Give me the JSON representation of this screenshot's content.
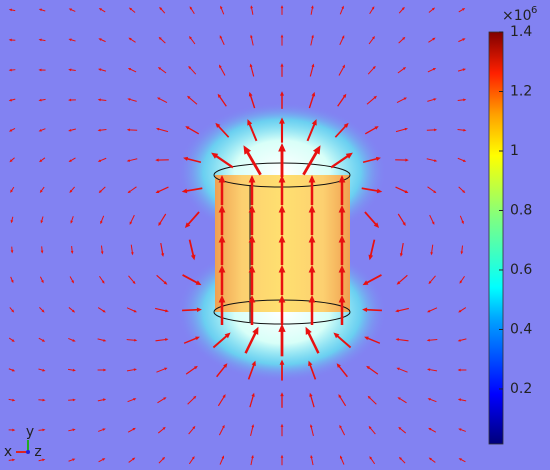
{
  "colorbar": {
    "exponent_base": "×10",
    "exponent": "6",
    "clim": [
      0.015,
      1.4
    ],
    "ticks": [
      0.2,
      0.4,
      0.6,
      0.8,
      1,
      1.2,
      1.4
    ]
  },
  "axes": {
    "x": "x",
    "y": "y",
    "z": "z"
  }
}
